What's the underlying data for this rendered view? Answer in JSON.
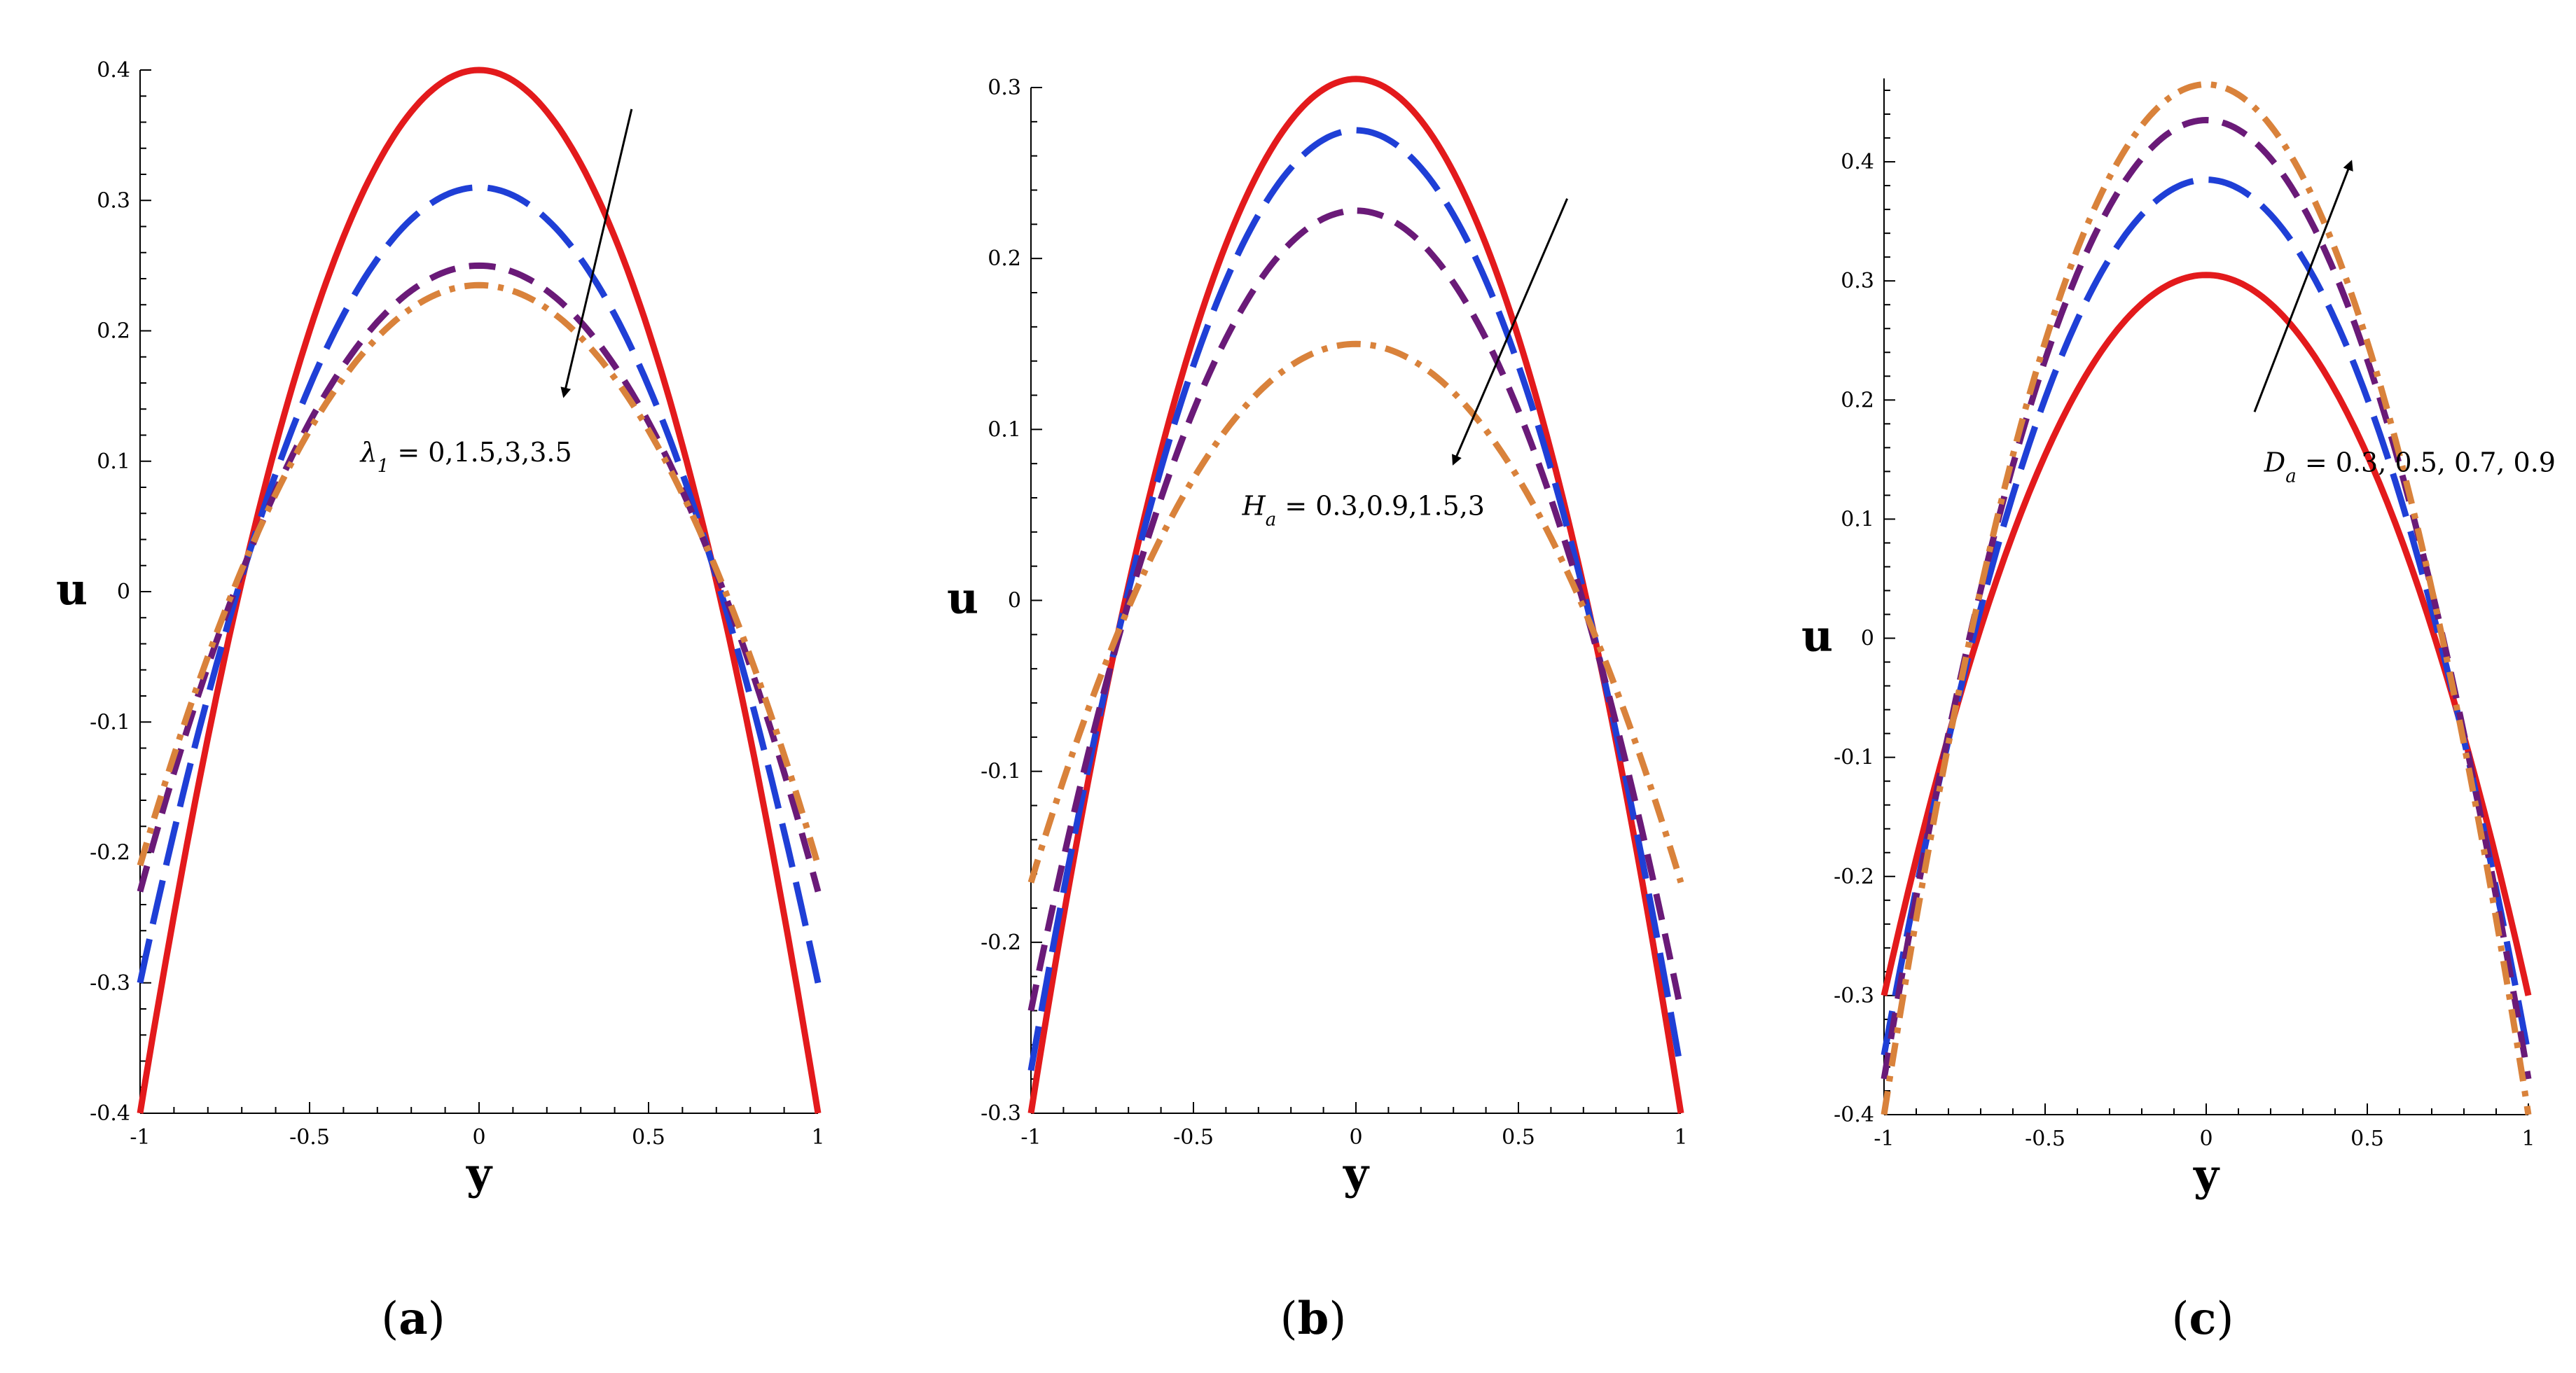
{
  "chart_data": [
    {
      "type": "line",
      "panel_label": "(a)",
      "panel_letter": "a",
      "xlabel": "y",
      "ylabel": "u",
      "xlim": [
        -1,
        1
      ],
      "ylim": [
        -0.4,
        0.4
      ],
      "xticks": [
        -1,
        -0.5,
        0,
        0.5,
        1
      ],
      "xtick_labels": [
        "-1",
        "-0.5",
        "0",
        "0.5",
        "1"
      ],
      "yticks": [
        -0.4,
        -0.3,
        -0.2,
        -0.1,
        0,
        0.1,
        0.2,
        0.3,
        0.4
      ],
      "ytick_labels": [
        "-0.4",
        "-0.3",
        "-0.2",
        "-0.1",
        "0",
        "0.1",
        "0.2",
        "0.3",
        "0.4"
      ],
      "annotation": {
        "symbol": "λ",
        "subscript": "1",
        "text": " = 0,1.5,3,3.5",
        "pos": [
          -0.35,
          0.1
        ],
        "arrow_from": [
          0.45,
          0.37
        ],
        "arrow_to": [
          0.25,
          0.15
        ]
      },
      "series": [
        {
          "name": "λ1 = 0",
          "color": "#e31a1c",
          "style": "solid",
          "peak": 0.4,
          "end": -0.4
        },
        {
          "name": "λ1 = 1.5",
          "color": "#1f3fd6",
          "style": "dash",
          "peak": 0.31,
          "end": -0.3
        },
        {
          "name": "λ1 = 3",
          "color": "#6a1a78",
          "style": "dash-short",
          "peak": 0.25,
          "end": -0.23
        },
        {
          "name": "λ1 = 3.5",
          "color": "#d9823b",
          "style": "dashdot",
          "peak": 0.235,
          "end": -0.21
        }
      ]
    },
    {
      "type": "line",
      "panel_label": "(b)",
      "panel_letter": "b",
      "xlabel": "y",
      "ylabel": "u",
      "xlim": [
        -1,
        1
      ],
      "ylim": [
        -0.3,
        0.3
      ],
      "xticks": [
        -1,
        -0.5,
        0,
        0.5,
        1
      ],
      "xtick_labels": [
        "-1",
        "-0.5",
        "0",
        "0.5",
        "1"
      ],
      "yticks": [
        -0.3,
        -0.2,
        -0.1,
        0,
        0.1,
        0.2,
        0.3
      ],
      "ytick_labels": [
        "-0.3",
        "-0.2",
        "-0.1",
        "0",
        "0.1",
        "0.2",
        "0.3"
      ],
      "annotation": {
        "symbol": "H",
        "subscript": "a",
        "text": " = 0.3,0.9,1.5,3",
        "pos": [
          -0.35,
          0.05
        ],
        "arrow_from": [
          0.65,
          0.235
        ],
        "arrow_to": [
          0.3,
          0.08
        ]
      },
      "series": [
        {
          "name": "Ha = 0.3",
          "color": "#e31a1c",
          "style": "solid",
          "peak": 0.305,
          "end": -0.3
        },
        {
          "name": "Ha = 0.9",
          "color": "#1f3fd6",
          "style": "dash",
          "peak": 0.275,
          "end": -0.275
        },
        {
          "name": "Ha = 1.5",
          "color": "#6a1a78",
          "style": "dash-short",
          "peak": 0.228,
          "end": -0.24
        },
        {
          "name": "Ha = 3",
          "color": "#d9823b",
          "style": "dashdot",
          "peak": 0.15,
          "end": -0.165
        }
      ]
    },
    {
      "type": "line",
      "panel_label": "(c)",
      "panel_letter": "c",
      "xlabel": "y",
      "ylabel": "u",
      "xlim": [
        -1,
        1
      ],
      "ylim": [
        -0.4,
        0.47
      ],
      "xticks": [
        -1,
        -0.5,
        0,
        0.5,
        1
      ],
      "xtick_labels": [
        "-1",
        "-0.5",
        "0",
        "0.5",
        "1"
      ],
      "yticks": [
        -0.4,
        -0.3,
        -0.2,
        -0.1,
        0,
        0.1,
        0.2,
        0.3,
        0.4
      ],
      "ytick_labels": [
        "-0.4",
        "-0.3",
        "-0.2",
        "-0.1",
        "0",
        "0.1",
        "0.2",
        "0.3",
        "0.4"
      ],
      "annotation": {
        "symbol": "D",
        "subscript": "a",
        "text": " = 0.3, 0.5, 0.7, 0.9",
        "pos": [
          0.18,
          0.14
        ],
        "arrow_from": [
          0.15,
          0.19
        ],
        "arrow_to": [
          0.45,
          0.4
        ]
      },
      "series": [
        {
          "name": "Da = 0.3",
          "color": "#e31a1c",
          "style": "solid",
          "peak": 0.305,
          "end": -0.3
        },
        {
          "name": "Da = 0.5",
          "color": "#1f3fd6",
          "style": "dash",
          "peak": 0.385,
          "end": -0.35
        },
        {
          "name": "Da = 0.7",
          "color": "#6a1a78",
          "style": "dash-short",
          "peak": 0.435,
          "end": -0.37
        },
        {
          "name": "Da = 0.9",
          "color": "#d9823b",
          "style": "dashdot",
          "peak": 0.465,
          "end": -0.4
        }
      ]
    }
  ]
}
